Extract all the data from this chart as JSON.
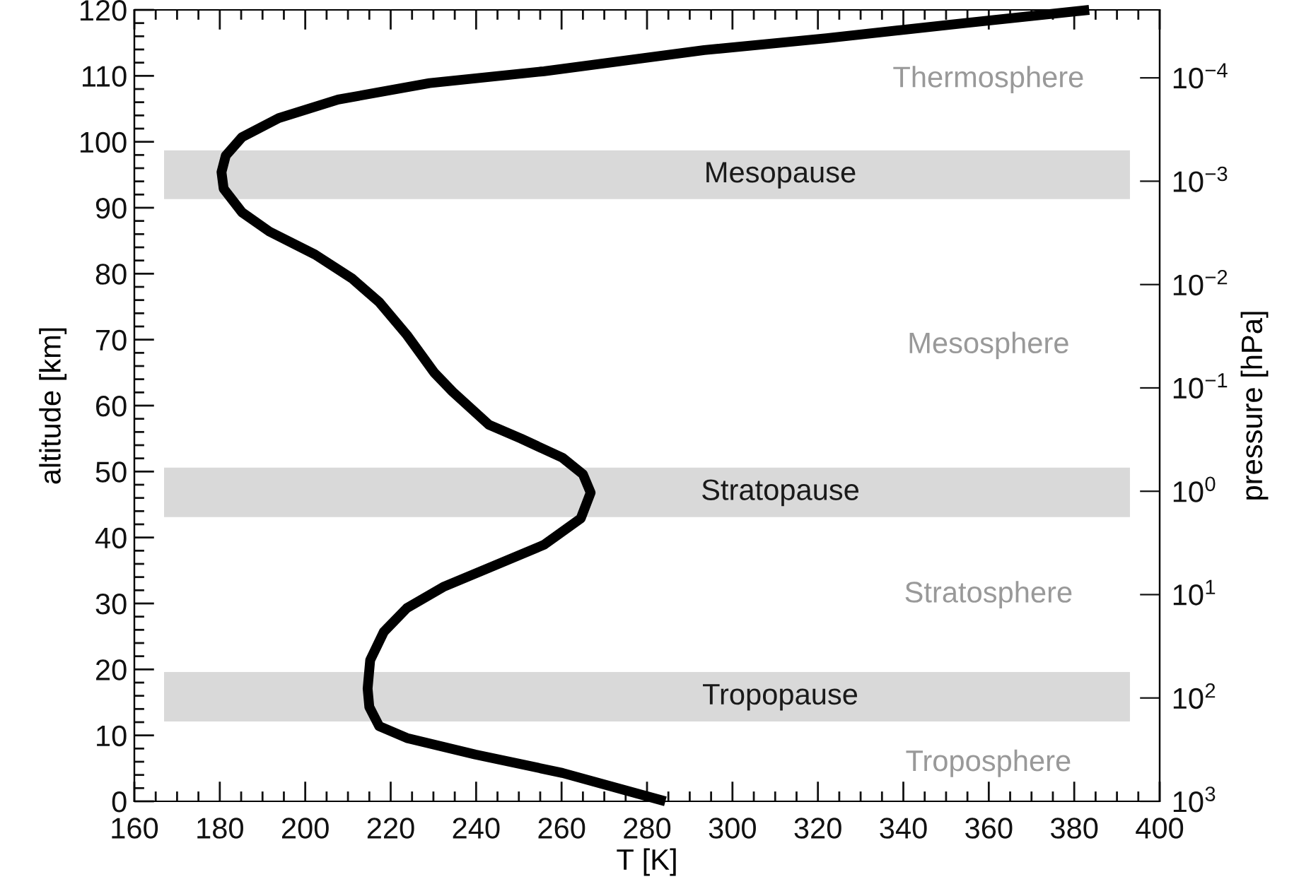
{
  "chart_data": {
    "type": "line",
    "xlabel": "T [K]",
    "ylabel": "altitude [km]",
    "y2label": "pressure [hPa]",
    "xlim": [
      160,
      400
    ],
    "xticks": [
      160,
      180,
      200,
      220,
      240,
      260,
      280,
      300,
      320,
      340,
      360,
      380,
      400
    ],
    "ylim": [
      0,
      120
    ],
    "yticks": [
      0,
      10,
      20,
      30,
      40,
      50,
      60,
      70,
      80,
      90,
      100,
      110,
      120
    ],
    "y2lim": [
      1000,
      2.2e-05
    ],
    "log": "y2",
    "y2ticks": [
      {
        "value": 1000,
        "label": "10$^{3}$"
      },
      {
        "value": 100,
        "label": "10$^{2}$"
      },
      {
        "value": 10,
        "label": "10$^{1}$"
      },
      {
        "value": 1,
        "label": "10$^{0}$"
      },
      {
        "value": 0.1,
        "label": "10$^{−1}$"
      },
      {
        "value": 0.01,
        "label": "10$^{−2}$"
      },
      {
        "value": 0.001,
        "label": "10$^{−3}$"
      },
      {
        "value": 0.0001,
        "label": "10$^{−4}$"
      }
    ],
    "grid": false,
    "legend": false,
    "series": [
      {
        "color": "#000000",
        "line_style": "solid",
        "marker": "none",
        "x": [
          284.3,
          260.2,
          239.8,
          223.8,
          217.3,
          215.0,
          214.6,
          215.2,
          218.4,
          223.8,
          232.3,
          243.0,
          255.9,
          264.5,
          266.8,
          265.0,
          260.2,
          250.5,
          243.0,
          234.5,
          230.2,
          223.8,
          217.3,
          210.9,
          202.3,
          191.6,
          185.2,
          180.9,
          180.4,
          181.4,
          185.2,
          193.8,
          207.7,
          229.1,
          255.9,
          293.4,
          322,
          354.5,
          383.5
        ],
        "values": [
          0,
          4.3,
          7.1,
          9.6,
          11.4,
          14.3,
          17.1,
          21.4,
          25.7,
          29.3,
          32.5,
          35.4,
          38.9,
          42.9,
          46.8,
          49.6,
          52.1,
          55.0,
          57.1,
          62.1,
          65.0,
          70.7,
          75.7,
          79.3,
          82.9,
          86.4,
          89.3,
          92.9,
          95.4,
          97.9,
          100.7,
          103.6,
          106.4,
          108.9,
          110.7,
          113.9,
          115.7,
          118.0,
          120
        ]
      }
    ],
    "bands": [
      {
        "axis": "y",
        "from": 91.3,
        "to": 98.7,
        "label": "Mesopause",
        "color": "#d9d9d9"
      },
      {
        "axis": "y",
        "from": 43.1,
        "to": 50.6,
        "label": "Stratopause",
        "color": "#d9d9d9"
      },
      {
        "axis": "y",
        "from": 12.1,
        "to": 19.6,
        "label": "Tropopause",
        "color": "#d9d9d9"
      }
    ],
    "annotations": [
      "Thermosphere",
      "Mesosphere",
      "Stratosphere",
      "Troposphere"
    ]
  }
}
